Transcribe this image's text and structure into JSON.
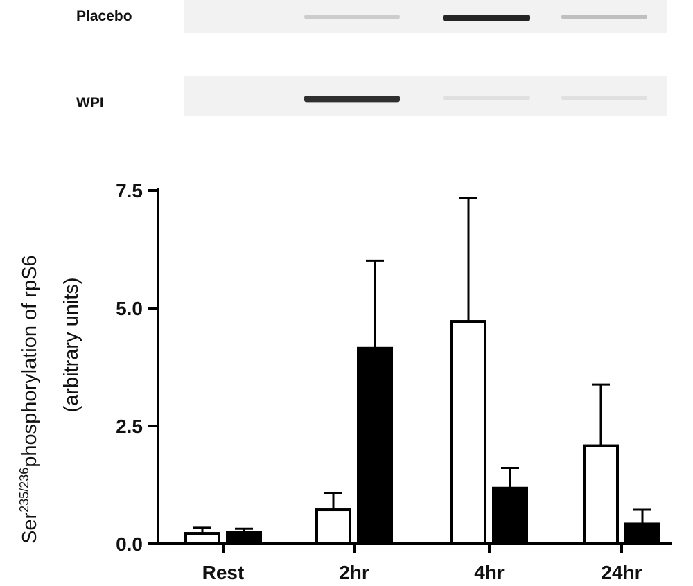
{
  "blot": {
    "rows": [
      {
        "label": "Placebo",
        "bands": [
          0.0,
          0.12,
          0.9,
          0.18
        ]
      },
      {
        "label": "WPI",
        "bands": [
          0.0,
          0.85,
          0.03,
          0.03
        ]
      }
    ],
    "colors": {
      "background": "#f2f2f2",
      "band": "#141414"
    }
  },
  "chart_data": {
    "type": "bar",
    "categories": [
      "Rest",
      "2hr",
      "4hr",
      "24hr"
    ],
    "series": [
      {
        "values": [
          0.22,
          0.72,
          4.72,
          2.08
        ],
        "errors": [
          0.12,
          0.36,
          2.62,
          1.3
        ],
        "fill": "#ffffff"
      },
      {
        "values": [
          0.25,
          4.15,
          1.18,
          0.42
        ],
        "errors": [
          0.07,
          1.86,
          0.43,
          0.3
        ],
        "fill": "#000000"
      }
    ],
    "ylabel_line1": "Ser",
    "ylabel_sup": "235/236",
    "ylabel_line1_rest": "phosphorylation of rpS6",
    "ylabel_line2": "(arbitrary units)",
    "ylim": [
      0,
      7.5
    ],
    "yticks": [
      "0.0",
      "2.5",
      "5.0",
      "7.5"
    ],
    "grid": false
  }
}
